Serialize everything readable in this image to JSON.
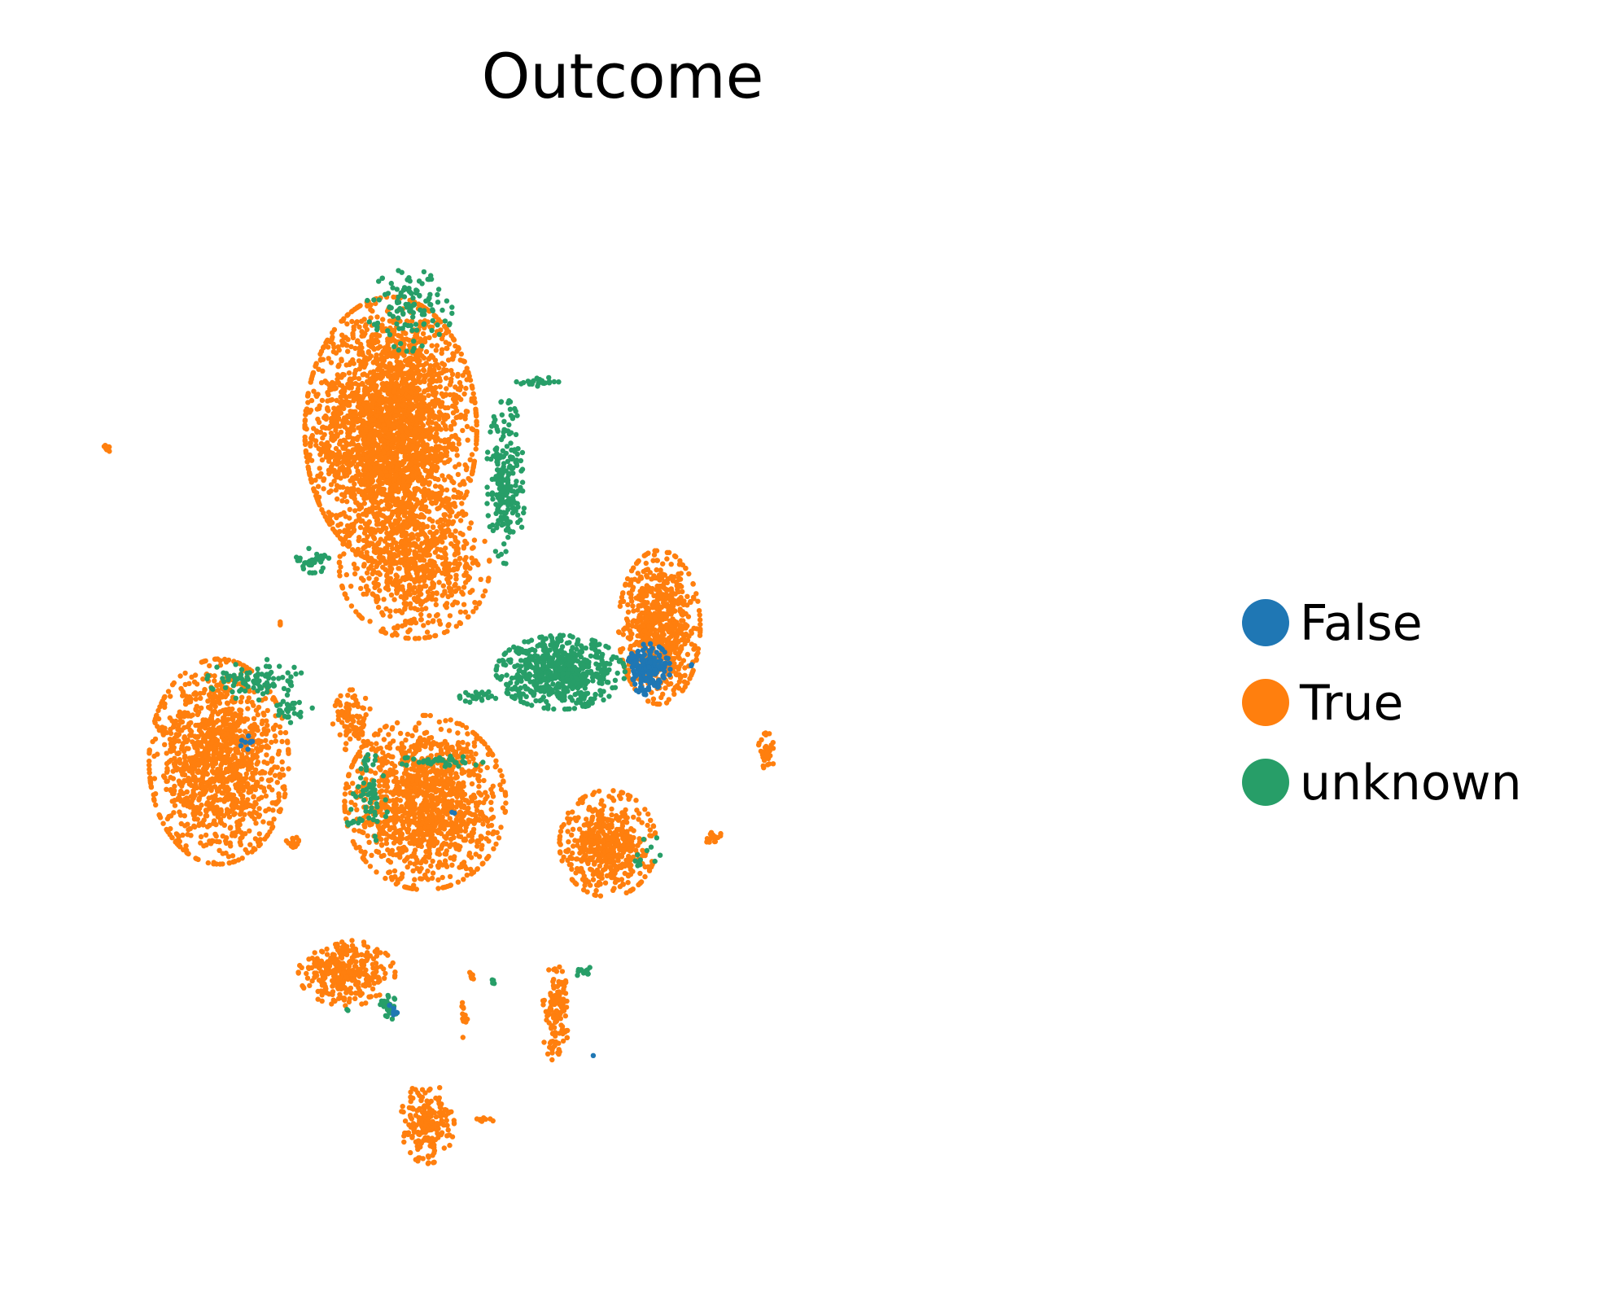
{
  "chart_data": {
    "type": "scatter",
    "title": "Outcome",
    "xlabel": "",
    "ylabel": "",
    "axes_visible": false,
    "grid": false,
    "xlim": [
      0,
      1
    ],
    "ylim": [
      0,
      1
    ],
    "legend": {
      "placement": "right-center",
      "entries": [
        "False",
        "True",
        "unknown"
      ]
    },
    "colors": {
      "False": "#1f77b4",
      "True": "#ff7f0e",
      "unknown": "#279e68"
    },
    "series": [
      {
        "name": "True",
        "clusters": [
          {
            "cx": 0.288,
            "cy": 0.763,
            "rx": 0.08,
            "ry": 0.13,
            "n": 2800
          },
          {
            "cx": 0.31,
            "cy": 0.63,
            "rx": 0.07,
            "ry": 0.07,
            "n": 700
          },
          {
            "cx": 0.128,
            "cy": 0.44,
            "rx": 0.065,
            "ry": 0.1,
            "n": 1300
          },
          {
            "cx": 0.32,
            "cy": 0.4,
            "rx": 0.075,
            "ry": 0.085,
            "n": 1300
          },
          {
            "cx": 0.252,
            "cy": 0.48,
            "rx": 0.018,
            "ry": 0.03,
            "n": 90
          },
          {
            "cx": 0.538,
            "cy": 0.571,
            "rx": 0.038,
            "ry": 0.075,
            "n": 700
          },
          {
            "cx": 0.49,
            "cy": 0.36,
            "rx": 0.045,
            "ry": 0.052,
            "n": 520
          },
          {
            "cx": 0.247,
            "cy": 0.234,
            "rx": 0.045,
            "ry": 0.032,
            "n": 320
          },
          {
            "cx": 0.322,
            "cy": 0.088,
            "rx": 0.025,
            "ry": 0.04,
            "n": 200
          },
          {
            "cx": 0.441,
            "cy": 0.195,
            "rx": 0.013,
            "ry": 0.047,
            "n": 130
          },
          {
            "cx": 0.638,
            "cy": 0.45,
            "rx": 0.008,
            "ry": 0.018,
            "n": 40
          },
          {
            "cx": 0.588,
            "cy": 0.366,
            "rx": 0.008,
            "ry": 0.008,
            "n": 15
          },
          {
            "cx": 0.023,
            "cy": 0.745,
            "rx": 0.006,
            "ry": 0.004,
            "n": 10
          },
          {
            "cx": 0.197,
            "cy": 0.36,
            "rx": 0.008,
            "ry": 0.007,
            "n": 15
          },
          {
            "cx": 0.356,
            "cy": 0.188,
            "rx": 0.004,
            "ry": 0.018,
            "n": 12
          },
          {
            "cx": 0.363,
            "cy": 0.231,
            "rx": 0.003,
            "ry": 0.006,
            "n": 6
          },
          {
            "cx": 0.376,
            "cy": 0.092,
            "rx": 0.008,
            "ry": 0.005,
            "n": 8
          },
          {
            "cx": 0.185,
            "cy": 0.573,
            "rx": 0.003,
            "ry": 0.004,
            "n": 3
          }
        ]
      },
      {
        "name": "unknown",
        "clusters": [
          {
            "cx": 0.446,
            "cy": 0.527,
            "rx": 0.06,
            "ry": 0.036,
            "n": 620
          },
          {
            "cx": 0.395,
            "cy": 0.713,
            "rx": 0.018,
            "ry": 0.08,
            "n": 220
          },
          {
            "cx": 0.305,
            "cy": 0.88,
            "rx": 0.04,
            "ry": 0.04,
            "n": 120
          },
          {
            "cx": 0.215,
            "cy": 0.636,
            "rx": 0.018,
            "ry": 0.012,
            "n": 35
          },
          {
            "cx": 0.162,
            "cy": 0.52,
            "rx": 0.045,
            "ry": 0.02,
            "n": 90
          },
          {
            "cx": 0.196,
            "cy": 0.49,
            "rx": 0.02,
            "ry": 0.012,
            "n": 30
          },
          {
            "cx": 0.372,
            "cy": 0.503,
            "rx": 0.02,
            "ry": 0.006,
            "n": 25
          },
          {
            "cx": 0.425,
            "cy": 0.81,
            "rx": 0.02,
            "ry": 0.005,
            "n": 25
          },
          {
            "cx": 0.334,
            "cy": 0.44,
            "rx": 0.04,
            "ry": 0.006,
            "n": 40
          },
          {
            "cx": 0.268,
            "cy": 0.41,
            "rx": 0.018,
            "ry": 0.05,
            "n": 60
          },
          {
            "cx": 0.286,
            "cy": 0.2,
            "rx": 0.008,
            "ry": 0.012,
            "n": 30
          },
          {
            "cx": 0.47,
            "cy": 0.235,
            "rx": 0.01,
            "ry": 0.006,
            "n": 12
          },
          {
            "cx": 0.522,
            "cy": 0.36,
            "rx": 0.02,
            "ry": 0.022,
            "n": 12
          },
          {
            "cx": 0.382,
            "cy": 0.225,
            "rx": 0.003,
            "ry": 0.004,
            "n": 4
          },
          {
            "cx": 0.248,
            "cy": 0.198,
            "rx": 0.003,
            "ry": 0.003,
            "n": 2
          },
          {
            "cx": 0.25,
            "cy": 0.38,
            "rx": 0.004,
            "ry": 0.004,
            "n": 3
          }
        ]
      },
      {
        "name": "False",
        "clusters": [
          {
            "cx": 0.528,
            "cy": 0.53,
            "rx": 0.02,
            "ry": 0.025,
            "n": 180
          },
          {
            "cx": 0.155,
            "cy": 0.46,
            "rx": 0.008,
            "ry": 0.008,
            "n": 9
          },
          {
            "cx": 0.29,
            "cy": 0.2,
            "rx": 0.005,
            "ry": 0.008,
            "n": 6
          },
          {
            "cx": 0.567,
            "cy": 0.533,
            "rx": 0.003,
            "ry": 0.003,
            "n": 2
          },
          {
            "cx": 0.347,
            "cy": 0.392,
            "rx": 0.008,
            "ry": 0.003,
            "n": 2
          },
          {
            "cx": 0.477,
            "cy": 0.153,
            "rx": 0.001,
            "ry": 0.001,
            "n": 1
          }
        ]
      }
    ]
  }
}
